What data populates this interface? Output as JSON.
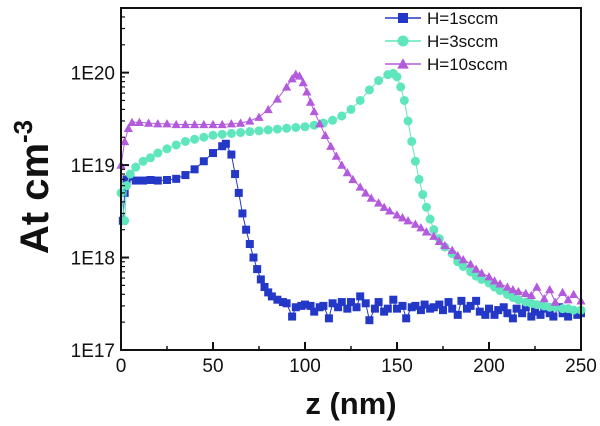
{
  "chart_data": {
    "type": "scatter",
    "title": "",
    "xlabel": "z (nm)",
    "ylabel_main": "At cm",
    "ylabel_sup": "-3",
    "xlim": [
      0,
      250
    ],
    "ylim": [
      1e+17,
      5e+20
    ],
    "yscale": "log",
    "x_ticks": [
      0,
      50,
      100,
      150,
      200,
      250
    ],
    "x_tick_labels": [
      "0",
      "50",
      "100",
      "150",
      "200",
      "250"
    ],
    "y_ticks": [
      1e+17,
      1e+18,
      1e+19,
      1e+20
    ],
    "y_tick_labels": [
      "1E17",
      "1E18",
      "1E19",
      "1E20"
    ],
    "grid": false,
    "legend_position": "top-right",
    "series": [
      {
        "name": "H=1sccm",
        "color": "#2438c8",
        "marker": "square",
        "points": [
          [
            1,
            2.5e+18
          ],
          [
            2,
            5e+18
          ],
          [
            3,
            7e+18
          ],
          [
            5,
            7.5e+18
          ],
          [
            8,
            6.8e+18
          ],
          [
            12,
            6.8e+18
          ],
          [
            16,
            6.9e+18
          ],
          [
            20,
            6.8e+18
          ],
          [
            25,
            6.9e+18
          ],
          [
            30,
            7.1e+18
          ],
          [
            35,
            7.8e+18
          ],
          [
            40,
            9e+18
          ],
          [
            45,
            1.1e+19
          ],
          [
            50,
            1.35e+19
          ],
          [
            55,
            1.6e+19
          ],
          [
            57,
            1.7e+19
          ],
          [
            60,
            1.3e+19
          ],
          [
            62,
            8e+18
          ],
          [
            64,
            5e+18
          ],
          [
            66,
            3e+18
          ],
          [
            68,
            2e+18
          ],
          [
            70,
            1.4e+18
          ],
          [
            72,
            1e+18
          ],
          [
            74,
            7.5e+17
          ],
          [
            76,
            5.8e+17
          ],
          [
            78,
            4.8e+17
          ],
          [
            80,
            4.2e+17
          ],
          [
            82,
            3.8e+17
          ],
          [
            85,
            3.5e+17
          ],
          [
            88,
            3.3e+17
          ],
          [
            90,
            3.2e+17
          ],
          [
            93,
            2.3e+17
          ],
          [
            95,
            2.9e+17
          ],
          [
            98,
            3e+17
          ],
          [
            100,
            3.1e+17
          ],
          [
            103,
            3e+17
          ],
          [
            105,
            2.6e+17
          ],
          [
            108,
            2.9e+17
          ],
          [
            110,
            3e+17
          ],
          [
            113,
            2.2e+17
          ],
          [
            115,
            3.2e+17
          ],
          [
            118,
            2.9e+17
          ],
          [
            120,
            3.3e+17
          ],
          [
            123,
            2.8e+17
          ],
          [
            125,
            3.3e+17
          ],
          [
            128,
            2.9e+17
          ],
          [
            130,
            3.8e+17
          ],
          [
            133,
            3.2e+17
          ],
          [
            135,
            2.1e+17
          ],
          [
            138,
            2.8e+17
          ],
          [
            140,
            3.3e+17
          ],
          [
            143,
            2.6e+17
          ],
          [
            145,
            2.8e+17
          ],
          [
            148,
            3.5e+17
          ],
          [
            150,
            2.8e+17
          ],
          [
            153,
            3e+17
          ],
          [
            155,
            2.2e+17
          ],
          [
            158,
            2.9e+17
          ],
          [
            160,
            3e+17
          ],
          [
            163,
            2.7e+17
          ],
          [
            165,
            3.1e+17
          ],
          [
            168,
            2.8e+17
          ],
          [
            170,
            2.9e+17
          ],
          [
            173,
            3.1e+17
          ],
          [
            175,
            2.7e+17
          ],
          [
            178,
            3.3e+17
          ],
          [
            180,
            2.8e+17
          ],
          [
            183,
            2.4e+17
          ],
          [
            185,
            3.4e+17
          ],
          [
            188,
            2.8e+17
          ],
          [
            190,
            3e+17
          ],
          [
            193,
            3.4e+17
          ],
          [
            195,
            2.6e+17
          ],
          [
            198,
            2.4e+17
          ],
          [
            200,
            2.8e+17
          ],
          [
            203,
            2.4e+17
          ],
          [
            205,
            2.7e+17
          ],
          [
            208,
            2.9e+17
          ],
          [
            210,
            2.5e+17
          ],
          [
            213,
            2.2e+17
          ],
          [
            215,
            2.8e+17
          ],
          [
            218,
            2.5e+17
          ],
          [
            220,
            2.9e+17
          ],
          [
            223,
            2.3e+17
          ],
          [
            225,
            2.6e+17
          ],
          [
            228,
            2.4e+17
          ],
          [
            230,
            2.8e+17
          ],
          [
            233,
            2.5e+17
          ],
          [
            235,
            2.3e+17
          ],
          [
            238,
            2.9e+17
          ],
          [
            240,
            2.5e+17
          ],
          [
            243,
            2.3e+17
          ],
          [
            245,
            2.7e+17
          ],
          [
            248,
            2.4e+17
          ],
          [
            250,
            2.5e+17
          ]
        ]
      },
      {
        "name": "H=3sccm",
        "color": "#5fe6bc",
        "marker": "circle",
        "points": [
          [
            0,
            5e+18
          ],
          [
            2,
            2.5e+18
          ],
          [
            3,
            6e+18
          ],
          [
            5,
            8e+18
          ],
          [
            8,
            9.5e+18
          ],
          [
            12,
            1.1e+19
          ],
          [
            16,
            1.2e+19
          ],
          [
            20,
            1.35e+19
          ],
          [
            25,
            1.5e+19
          ],
          [
            30,
            1.65e+19
          ],
          [
            35,
            1.8e+19
          ],
          [
            40,
            1.9e+19
          ],
          [
            45,
            2e+19
          ],
          [
            50,
            2.1e+19
          ],
          [
            55,
            2.15e+19
          ],
          [
            60,
            2.2e+19
          ],
          [
            65,
            2.25e+19
          ],
          [
            70,
            2.3e+19
          ],
          [
            75,
            2.35e+19
          ],
          [
            80,
            2.4e+19
          ],
          [
            85,
            2.45e+19
          ],
          [
            90,
            2.5e+19
          ],
          [
            95,
            2.55e+19
          ],
          [
            100,
            2.6e+19
          ],
          [
            105,
            2.7e+19
          ],
          [
            110,
            2.85e+19
          ],
          [
            115,
            3.05e+19
          ],
          [
            120,
            3.4e+19
          ],
          [
            125,
            4e+19
          ],
          [
            130,
            5e+19
          ],
          [
            135,
            6.5e+19
          ],
          [
            140,
            8.2e+19
          ],
          [
            145,
            9.5e+19
          ],
          [
            148,
            9.8e+19
          ],
          [
            150,
            9e+19
          ],
          [
            152,
            7e+19
          ],
          [
            154,
            5e+19
          ],
          [
            156,
            3e+19
          ],
          [
            158,
            1.8e+19
          ],
          [
            160,
            1.1e+19
          ],
          [
            162,
            7e+18
          ],
          [
            164,
            4.8e+18
          ],
          [
            166,
            3.5e+18
          ],
          [
            168,
            2.6e+18
          ],
          [
            170,
            2e+18
          ],
          [
            173,
            1.6e+18
          ],
          [
            176,
            1.3e+18
          ],
          [
            180,
            1.1e+18
          ],
          [
            183,
            9e+17
          ],
          [
            186,
            8e+17
          ],
          [
            190,
            7e+17
          ],
          [
            193,
            6.3e+17
          ],
          [
            196,
            5.8e+17
          ],
          [
            200,
            5.3e+17
          ],
          [
            203,
            4.8e+17
          ],
          [
            206,
            4.4e+17
          ],
          [
            210,
            4e+17
          ],
          [
            213,
            3.7e+17
          ],
          [
            216,
            3.5e+17
          ],
          [
            220,
            3.3e+17
          ],
          [
            223,
            3.2e+17
          ],
          [
            226,
            3.1e+17
          ],
          [
            230,
            3e+17
          ],
          [
            233,
            2.9e+17
          ],
          [
            236,
            2.9e+17
          ],
          [
            240,
            2.8e+17
          ],
          [
            243,
            2.8e+17
          ],
          [
            246,
            2.7e+17
          ],
          [
            250,
            2.7e+17
          ]
        ]
      },
      {
        "name": "H=10sccm",
        "color": "#b45adc",
        "marker": "triangle",
        "points": [
          [
            0,
            1e+19
          ],
          [
            2,
            1.8e+19
          ],
          [
            4,
            2.5e+19
          ],
          [
            6,
            2.9e+19
          ],
          [
            10,
            2.9e+19
          ],
          [
            15,
            2.85e+19
          ],
          [
            20,
            2.8e+19
          ],
          [
            25,
            2.8e+19
          ],
          [
            30,
            2.75e+19
          ],
          [
            35,
            2.75e+19
          ],
          [
            40,
            2.75e+19
          ],
          [
            45,
            2.75e+19
          ],
          [
            50,
            2.75e+19
          ],
          [
            55,
            2.75e+19
          ],
          [
            60,
            2.8e+19
          ],
          [
            65,
            2.85e+19
          ],
          [
            70,
            3e+19
          ],
          [
            75,
            3.3e+19
          ],
          [
            80,
            4e+19
          ],
          [
            85,
            5.2e+19
          ],
          [
            90,
            7e+19
          ],
          [
            93,
            8.6e+19
          ],
          [
            95,
            9.6e+19
          ],
          [
            97,
            9.2e+19
          ],
          [
            99,
            7.8e+19
          ],
          [
            101,
            6.2e+19
          ],
          [
            103,
            4.8e+19
          ],
          [
            105,
            3.8e+19
          ],
          [
            108,
            2.8e+19
          ],
          [
            111,
            2.1e+19
          ],
          [
            114,
            1.6e+19
          ],
          [
            117,
            1.25e+19
          ],
          [
            120,
            1e+19
          ],
          [
            123,
            8.3e+18
          ],
          [
            126,
            7e+18
          ],
          [
            130,
            5.8e+18
          ],
          [
            133,
            5e+18
          ],
          [
            136,
            4.4e+18
          ],
          [
            140,
            3.9e+18
          ],
          [
            143,
            3.5e+18
          ],
          [
            146,
            3.2e+18
          ],
          [
            150,
            2.9e+18
          ],
          [
            153,
            2.7e+18
          ],
          [
            156,
            2.5e+18
          ],
          [
            160,
            2.3e+18
          ],
          [
            163,
            2.1e+18
          ],
          [
            166,
            1.9e+18
          ],
          [
            170,
            1.7e+18
          ],
          [
            173,
            1.5e+18
          ],
          [
            176,
            1.35e+18
          ],
          [
            180,
            1.2e+18
          ],
          [
            183,
            1.05e+18
          ],
          [
            186,
            9.5e+17
          ],
          [
            190,
            8.5e+17
          ],
          [
            193,
            7.5e+17
          ],
          [
            196,
            6.8e+17
          ],
          [
            200,
            6.2e+17
          ],
          [
            203,
            5.6e+17
          ],
          [
            206,
            5.2e+17
          ],
          [
            210,
            4.8e+17
          ],
          [
            213,
            4.5e+17
          ],
          [
            216,
            4.3e+17
          ],
          [
            220,
            4.1e+17
          ],
          [
            223,
            3.9e+17
          ],
          [
            226,
            4.8e+17
          ],
          [
            230,
            3.6e+17
          ],
          [
            233,
            4.5e+17
          ],
          [
            236,
            3.3e+17
          ],
          [
            240,
            4.2e+17
          ],
          [
            243,
            3.5e+17
          ],
          [
            246,
            4e+17
          ],
          [
            250,
            3.4e+17
          ]
        ]
      }
    ]
  }
}
